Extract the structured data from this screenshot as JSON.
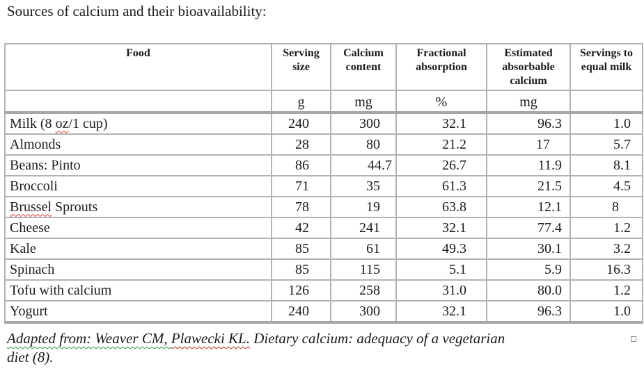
{
  "title": "Sources of calcium and their bioavailability:",
  "table": {
    "headers": [
      "Food",
      "Serving size",
      "Calcium content",
      "Fractional absorption",
      "Estimated absorbable calcium",
      "Servings to equal milk"
    ],
    "units": [
      "",
      "g",
      "mg",
      "%",
      "mg",
      ""
    ],
    "rows": [
      {
        "food": [
          {
            "text": "Milk (8 "
          },
          {
            "text": "oz",
            "squiggle": "red"
          },
          {
            "text": "/1 cup)"
          }
        ],
        "values": [
          "240",
          "300",
          "32.1",
          "96.3",
          "1.0"
        ]
      },
      {
        "food": [
          {
            "text": "Almonds"
          }
        ],
        "values": [
          "28",
          "80",
          "21.2",
          "17",
          "5.7"
        ]
      },
      {
        "food": [
          {
            "text": "Beans: Pinto"
          }
        ],
        "values": [
          "86",
          "44.7",
          "26.7",
          "11.9",
          "8.1"
        ]
      },
      {
        "food": [
          {
            "text": "Broccoli"
          }
        ],
        "values": [
          "71",
          "35",
          "61.3",
          "21.5",
          "4.5"
        ]
      },
      {
        "food": [
          {
            "text": "Brussel",
            "squiggle": "red"
          },
          {
            "text": " Sprouts"
          }
        ],
        "values": [
          "78",
          "19",
          "63.8",
          "12.1",
          "8"
        ]
      },
      {
        "food": [
          {
            "text": "Cheese"
          }
        ],
        "values": [
          "42",
          "241",
          "32.1",
          "77.4",
          "1.2"
        ]
      },
      {
        "food": [
          {
            "text": "Kale"
          }
        ],
        "values": [
          "85",
          "61",
          "49.3",
          "30.1",
          "3.2"
        ]
      },
      {
        "food": [
          {
            "text": "Spinach"
          }
        ],
        "values": [
          "85",
          "115",
          "5.1",
          "5.9",
          "16.3"
        ]
      },
      {
        "food": [
          {
            "text": "Tofu with calcium"
          }
        ],
        "values": [
          "126",
          "258",
          "31.0",
          "80.0",
          "1.2"
        ]
      },
      {
        "food": [
          {
            "text": "Yogurt"
          }
        ],
        "values": [
          "240",
          "300",
          "32.1",
          "96.3",
          "1.0"
        ]
      }
    ]
  },
  "caption": {
    "line1": [
      {
        "text": "Adapted from: Weaver CM, ",
        "squiggle": "green"
      },
      {
        "text": "Plawecki KL.",
        "squiggle": "green-red"
      },
      {
        "text": " Dietary calcium: adequacy of a vegetarian"
      }
    ],
    "line2": "diet (8)."
  }
}
